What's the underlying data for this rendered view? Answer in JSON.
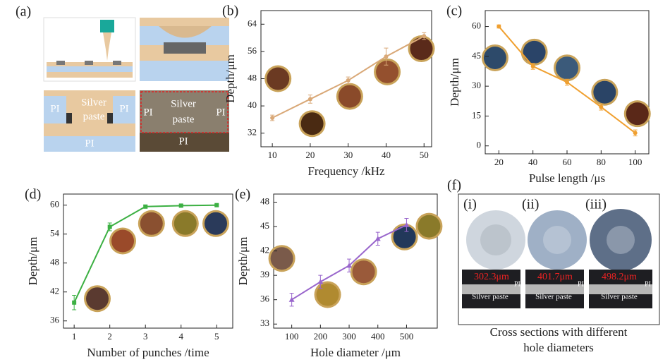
{
  "panel_a": {
    "label": "(a)",
    "left_labels": {
      "silver": "Silver",
      "paste": "paste",
      "pi_left": "PI",
      "pi_right": "PI",
      "pi_bottom": "PI"
    },
    "right_labels": {
      "silver": "Silver",
      "paste": "paste",
      "pi_left": "PI",
      "pi_right": "PI",
      "pi_bottom": "PI"
    }
  },
  "panel_f": {
    "label": "(f)",
    "sub_labels": [
      "(i)",
      "(ii)",
      "(iii)"
    ],
    "measurements": [
      "302.3μm",
      "401.7μm",
      "498.2μm"
    ],
    "pi_labels": [
      "PI",
      "PI",
      "PI"
    ],
    "paste_labels": [
      "Silver paste",
      "Silver paste",
      "Silver paste"
    ],
    "caption": [
      "Cross sections with different",
      "hole diameters"
    ]
  },
  "chart_data": [
    {
      "type": "line",
      "panel_label": "(b)",
      "xlabel": "Frequency /kHz",
      "ylabel": "Depth/μm",
      "color": "#d9a877",
      "marker": "circle",
      "x": [
        10,
        20,
        30,
        40,
        50
      ],
      "values": [
        36.5,
        42,
        47.5,
        54.5,
        60.5
      ],
      "errors": [
        0.8,
        1.2,
        1,
        2.5,
        1
      ],
      "xlim": [
        7,
        52
      ],
      "xticks": [
        10,
        20,
        30,
        40,
        50
      ],
      "ylim": [
        28,
        68
      ],
      "yticks": [
        32,
        40,
        48,
        56,
        64
      ]
    },
    {
      "type": "line",
      "panel_label": "(c)",
      "xlabel": "Pulse length /μs",
      "ylabel": "Depth/μm",
      "color": "#f0a030",
      "marker": "circle",
      "x": [
        20,
        40,
        60,
        80,
        100
      ],
      "values": [
        60,
        40,
        32,
        19.5,
        6.5
      ],
      "errors": [
        0.8,
        1.5,
        1.5,
        1.5,
        1.5
      ],
      "xlim": [
        12,
        108
      ],
      "xticks": [
        20,
        40,
        60,
        80,
        100
      ],
      "ylim": [
        -4,
        68
      ],
      "yticks": [
        0,
        15,
        30,
        45,
        60
      ]
    },
    {
      "type": "line",
      "panel_label": "(d)",
      "xlabel": "Number of punches /time",
      "ylabel": "Depth/μm",
      "color": "#3cb043",
      "marker": "square",
      "x": [
        1,
        2,
        3,
        4,
        5
      ],
      "values": [
        39.8,
        55.5,
        59.7,
        59.9,
        60
      ],
      "errors": [
        1.5,
        0.8,
        0.3,
        0.2,
        0.2
      ],
      "xlim": [
        0.7,
        5.45
      ],
      "xticks": [
        1,
        2,
        3,
        4,
        5
      ],
      "ylim": [
        34.5,
        62.3
      ],
      "yticks": [
        36,
        42,
        48,
        54,
        60
      ]
    },
    {
      "type": "line",
      "panel_label": "(e)",
      "xlabel": "Hole diameter /μm",
      "ylabel": "Depth/μm",
      "color": "#9966cc",
      "marker": "triangle",
      "x": [
        100,
        200,
        300,
        400,
        500
      ],
      "values": [
        36,
        38.2,
        40.2,
        43.5,
        45.2
      ],
      "errors": [
        0.8,
        0.8,
        0.8,
        0.8,
        0.8
      ],
      "xlim": [
        37,
        607
      ],
      "xticks": [
        100,
        200,
        300,
        400,
        500
      ],
      "ylim": [
        32.5,
        49
      ],
      "yticks": [
        33,
        36,
        39,
        42,
        45,
        48
      ]
    }
  ]
}
